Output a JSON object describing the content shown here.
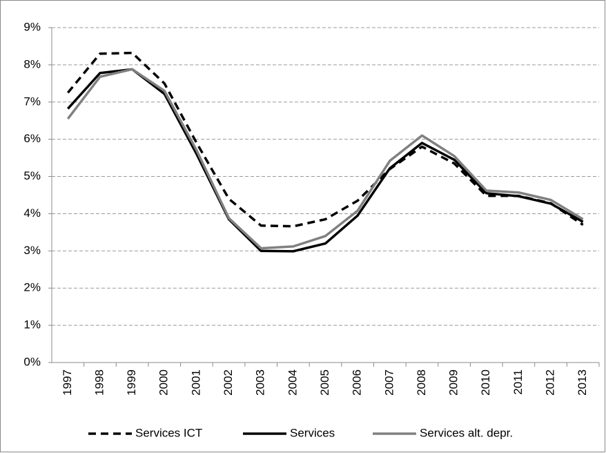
{
  "chart_data": {
    "type": "line",
    "categories": [
      "1997",
      "1998",
      "1999",
      "2000",
      "2001",
      "2002",
      "2003",
      "2004",
      "2005",
      "2006",
      "2007",
      "2008",
      "2009",
      "2010",
      "2011",
      "2012",
      "2013"
    ],
    "series": [
      {
        "name": "Services ICT",
        "color": "#000000",
        "style": "dashed",
        "values": [
          7.25,
          8.3,
          8.32,
          7.5,
          5.9,
          4.4,
          3.68,
          3.66,
          3.85,
          4.35,
          5.2,
          5.8,
          5.35,
          4.48,
          4.48,
          4.28,
          3.7
        ]
      },
      {
        "name": "Services",
        "color": "#000000",
        "style": "solid",
        "values": [
          6.82,
          7.78,
          7.88,
          7.22,
          5.6,
          3.85,
          3.0,
          2.99,
          3.2,
          3.95,
          5.22,
          5.9,
          5.45,
          4.55,
          4.47,
          4.27,
          3.78
        ]
      },
      {
        "name": "Services alt. depr.",
        "color": "#808080",
        "style": "solid",
        "values": [
          6.55,
          7.68,
          7.88,
          7.3,
          5.7,
          3.88,
          3.07,
          3.12,
          3.4,
          4.08,
          5.42,
          6.1,
          5.55,
          4.62,
          4.57,
          4.37,
          3.85
        ]
      }
    ],
    "ylim": [
      0,
      9
    ],
    "yticks": [
      {
        "value": 0,
        "label": "0%"
      },
      {
        "value": 1,
        "label": "1%"
      },
      {
        "value": 2,
        "label": "2%"
      },
      {
        "value": 3,
        "label": "3%"
      },
      {
        "value": 4,
        "label": "4%"
      },
      {
        "value": 5,
        "label": "5%"
      },
      {
        "value": 6,
        "label": "6%"
      },
      {
        "value": 7,
        "label": "7%"
      },
      {
        "value": 8,
        "label": "8%"
      },
      {
        "value": 9,
        "label": "9%"
      }
    ],
    "grid": true,
    "legend": "bottom"
  }
}
